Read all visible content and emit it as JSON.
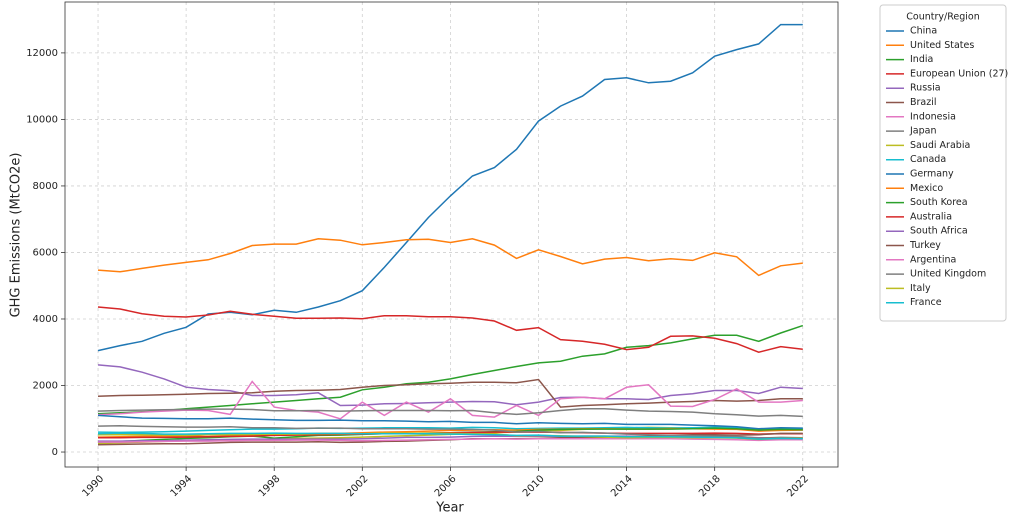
{
  "chart_data": {
    "type": "line",
    "x_label": "Year",
    "y_label": "GHG Emissions (MtCO2e)",
    "legend_title": "Country/Region",
    "legend": "outside-right",
    "grid": true,
    "xlim": [
      1988.5,
      2023.6
    ],
    "ylim": [
      -450,
      13530
    ],
    "xticks": [
      1990,
      1994,
      1998,
      2002,
      2006,
      2010,
      2014,
      2018,
      2022
    ],
    "yticks": [
      0,
      2000,
      4000,
      6000,
      8000,
      10000,
      12000
    ],
    "x": [
      1990,
      1991,
      1992,
      1993,
      1994,
      1995,
      1996,
      1997,
      1998,
      1999,
      2000,
      2001,
      2002,
      2003,
      2004,
      2005,
      2006,
      2007,
      2008,
      2009,
      2010,
      2011,
      2012,
      2013,
      2014,
      2015,
      2016,
      2017,
      2018,
      2019,
      2020,
      2021,
      2022
    ],
    "series": [
      {
        "name": "China",
        "color": "#1f77b4",
        "values": [
          3050,
          3200,
          3330,
          3570,
          3750,
          4150,
          4200,
          4130,
          4260,
          4200,
          4360,
          4550,
          4850,
          5550,
          6300,
          7050,
          7700,
          8300,
          8550,
          9100,
          9950,
          10400,
          10700,
          11200,
          11250,
          11100,
          11150,
          11400,
          11900,
          12100,
          12270,
          12850,
          12850
        ]
      },
      {
        "name": "United States",
        "color": "#ff7f0e",
        "values": [
          5470,
          5420,
          5520,
          5620,
          5700,
          5780,
          5970,
          6210,
          6250,
          6250,
          6410,
          6370,
          6230,
          6300,
          6380,
          6400,
          6300,
          6410,
          6220,
          5820,
          6080,
          5880,
          5660,
          5800,
          5850,
          5750,
          5810,
          5760,
          5990,
          5870,
          5310,
          5600,
          5680
        ]
      },
      {
        "name": "India",
        "color": "#2ca02c",
        "values": [
          1150,
          1180,
          1210,
          1250,
          1300,
          1350,
          1400,
          1450,
          1500,
          1550,
          1600,
          1650,
          1870,
          1950,
          2050,
          2100,
          2200,
          2330,
          2450,
          2570,
          2680,
          2730,
          2880,
          2950,
          3150,
          3200,
          3280,
          3400,
          3510,
          3510,
          3330,
          3580,
          3800
        ]
      },
      {
        "name": "European Union (27)",
        "color": "#d62728",
        "values": [
          4360,
          4300,
          4160,
          4080,
          4060,
          4120,
          4230,
          4140,
          4080,
          4020,
          4020,
          4030,
          4010,
          4100,
          4100,
          4070,
          4070,
          4030,
          3940,
          3660,
          3740,
          3380,
          3330,
          3240,
          3080,
          3150,
          3480,
          3490,
          3420,
          3260,
          3000,
          3170,
          3090
        ]
      },
      {
        "name": "Russia",
        "color": "#9467bd",
        "values": [
          2620,
          2560,
          2400,
          2200,
          1950,
          1880,
          1840,
          1700,
          1700,
          1720,
          1780,
          1400,
          1410,
          1450,
          1460,
          1480,
          1500,
          1520,
          1510,
          1420,
          1500,
          1640,
          1650,
          1600,
          1600,
          1580,
          1700,
          1750,
          1850,
          1850,
          1760,
          1950,
          1910
        ]
      },
      {
        "name": "Brazil",
        "color": "#8c564b",
        "values": [
          1680,
          1700,
          1710,
          1720,
          1740,
          1760,
          1770,
          1780,
          1830,
          1850,
          1860,
          1880,
          1950,
          2000,
          2020,
          2050,
          2070,
          2100,
          2100,
          2080,
          2180,
          1350,
          1400,
          1420,
          1450,
          1470,
          1500,
          1520,
          1550,
          1530,
          1550,
          1600,
          1600
        ]
      },
      {
        "name": "Indonesia",
        "color": "#e377c2",
        "values": [
          1120,
          1150,
          1200,
          1230,
          1260,
          1250,
          1130,
          2120,
          1350,
          1250,
          1200,
          1000,
          1500,
          1100,
          1500,
          1200,
          1600,
          1100,
          1050,
          1400,
          1100,
          1600,
          1650,
          1600,
          1950,
          2020,
          1380,
          1370,
          1580,
          1900,
          1500,
          1500,
          1550
        ]
      },
      {
        "name": "Japan",
        "color": "#7f7f7f",
        "values": [
          1230,
          1250,
          1260,
          1270,
          1280,
          1290,
          1290,
          1280,
          1240,
          1240,
          1250,
          1230,
          1240,
          1250,
          1250,
          1250,
          1240,
          1250,
          1180,
          1130,
          1180,
          1250,
          1300,
          1300,
          1260,
          1230,
          1220,
          1200,
          1150,
          1120,
          1080,
          1100,
          1070
        ]
      },
      {
        "name": "Saudi Arabia",
        "color": "#bcbd22",
        "values": [
          250,
          280,
          300,
          320,
          340,
          350,
          370,
          380,
          390,
          410,
          420,
          430,
          450,
          470,
          490,
          510,
          530,
          550,
          580,
          600,
          640,
          650,
          680,
          700,
          720,
          740,
          730,
          720,
          700,
          690,
          670,
          680,
          700
        ]
      },
      {
        "name": "Canada",
        "color": "#17becf",
        "values": [
          600,
          590,
          600,
          610,
          630,
          650,
          670,
          690,
          690,
          700,
          720,
          710,
          720,
          730,
          730,
          730,
          720,
          740,
          730,
          700,
          710,
          720,
          720,
          730,
          740,
          730,
          720,
          730,
          750,
          740,
          680,
          700,
          710
        ]
      },
      {
        "name": "Germany",
        "color": "#1f77b4",
        "values": [
          1100,
          1060,
          1020,
          1010,
          1000,
          1000,
          1020,
          990,
          970,
          950,
          950,
          960,
          940,
          940,
          930,
          910,
          920,
          890,
          890,
          850,
          880,
          860,
          850,
          860,
          830,
          830,
          830,
          810,
          790,
          760,
          700,
          730,
          720
        ]
      },
      {
        "name": "Mexico",
        "color": "#ff7f0e",
        "values": [
          450,
          460,
          470,
          480,
          480,
          470,
          490,
          510,
          530,
          540,
          560,
          560,
          580,
          600,
          610,
          630,
          650,
          660,
          670,
          660,
          680,
          690,
          700,
          700,
          690,
          690,
          700,
          700,
          690,
          680,
          630,
          650,
          660
        ]
      },
      {
        "name": "South Korea",
        "color": "#2ca02c",
        "values": [
          290,
          320,
          350,
          380,
          410,
          430,
          460,
          480,
          420,
          460,
          500,
          510,
          530,
          550,
          560,
          570,
          580,
          600,
          610,
          620,
          660,
          680,
          690,
          690,
          690,
          690,
          690,
          700,
          720,
          700,
          660,
          680,
          670
        ]
      },
      {
        "name": "Australia",
        "color": "#d62728",
        "values": [
          430,
          430,
          440,
          440,
          450,
          460,
          470,
          480,
          500,
          510,
          520,
          530,
          540,
          550,
          560,
          570,
          580,
          590,
          600,
          600,
          600,
          590,
          580,
          570,
          560,
          560,
          560,
          560,
          570,
          560,
          540,
          550,
          550
        ]
      },
      {
        "name": "South Africa",
        "color": "#9467bd",
        "values": [
          330,
          330,
          340,
          340,
          360,
          370,
          380,
          390,
          390,
          390,
          390,
          390,
          400,
          420,
          440,
          440,
          450,
          470,
          480,
          470,
          480,
          470,
          480,
          480,
          480,
          470,
          470,
          470,
          460,
          460,
          430,
          430,
          420
        ]
      },
      {
        "name": "Turkey",
        "color": "#8c564b",
        "values": [
          220,
          230,
          240,
          250,
          250,
          270,
          290,
          300,
          300,
          300,
          310,
          290,
          300,
          320,
          330,
          350,
          370,
          400,
          400,
          400,
          410,
          430,
          440,
          430,
          460,
          480,
          500,
          520,
          520,
          510,
          520,
          560,
          560
        ]
      },
      {
        "name": "Argentina",
        "color": "#e377c2",
        "values": [
          300,
          300,
          310,
          320,
          330,
          330,
          340,
          350,
          350,
          360,
          360,
          350,
          340,
          350,
          360,
          370,
          380,
          390,
          400,
          390,
          400,
          400,
          400,
          400,
          400,
          400,
          400,
          390,
          380,
          370,
          350,
          370,
          370
        ]
      },
      {
        "name": "United Kingdom",
        "color": "#7f7f7f",
        "values": [
          780,
          790,
          770,
          760,
          750,
          750,
          760,
          730,
          730,
          710,
          720,
          720,
          700,
          700,
          700,
          690,
          690,
          680,
          660,
          600,
          620,
          580,
          590,
          570,
          540,
          520,
          500,
          490,
          480,
          470,
          420,
          440,
          430
        ]
      },
      {
        "name": "Italy",
        "color": "#bcbd22",
        "values": [
          520,
          520,
          520,
          510,
          500,
          530,
          520,
          530,
          540,
          540,
          550,
          550,
          550,
          570,
          570,
          570,
          560,
          550,
          540,
          490,
          500,
          490,
          470,
          450,
          430,
          440,
          440,
          430,
          430,
          420,
          380,
          410,
          410
        ]
      },
      {
        "name": "France",
        "color": "#17becf",
        "values": [
          550,
          570,
          560,
          540,
          540,
          550,
          560,
          560,
          570,
          560,
          560,
          560,
          550,
          550,
          550,
          550,
          540,
          530,
          520,
          500,
          510,
          480,
          480,
          480,
          460,
          460,
          460,
          450,
          440,
          430,
          390,
          410,
          400
        ]
      }
    ]
  }
}
